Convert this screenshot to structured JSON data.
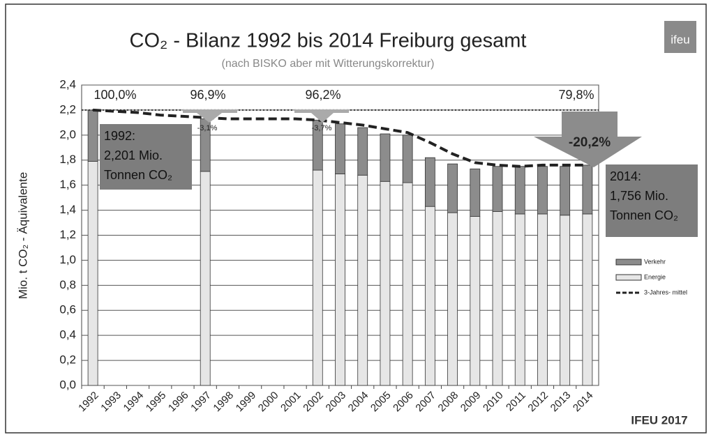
{
  "chart_data": {
    "type": "bar",
    "title": "CO₂ - Bilanz 1992 bis 2014 Freiburg gesamt",
    "subtitle": "(nach BISKO aber mit Witterungskorrektur)",
    "y_label": "Mio. t CO₂ - Äquivalente",
    "logo": "ifeu",
    "source": "IFEU 2017",
    "categories": [
      "1992",
      "1993",
      "1994",
      "1995",
      "1996",
      "1997",
      "1998",
      "1999",
      "2000",
      "2001",
      "2002",
      "2003",
      "2004",
      "2005",
      "2006",
      "2007",
      "2008",
      "2009",
      "2010",
      "2011",
      "2012",
      "2013",
      "2014"
    ],
    "series": [
      {
        "name": "Energie",
        "color": "#e6e6e6",
        "values": [
          1.79,
          null,
          null,
          null,
          null,
          1.71,
          null,
          null,
          null,
          null,
          1.72,
          1.69,
          1.68,
          1.63,
          1.62,
          1.43,
          1.38,
          1.35,
          1.39,
          1.37,
          1.37,
          1.36,
          1.37
        ]
      },
      {
        "name": "Verkehr",
        "color": "#8c8c8c",
        "values": [
          0.41,
          null,
          null,
          null,
          null,
          0.42,
          null,
          null,
          null,
          null,
          0.4,
          0.4,
          0.38,
          0.38,
          0.38,
          0.39,
          0.39,
          0.38,
          0.36,
          0.38,
          0.38,
          0.39,
          0.39
        ]
      },
      {
        "name": "3-Jahres- mittel",
        "type": "line",
        "color": "#222",
        "values": [
          2.2,
          2.19,
          2.18,
          2.16,
          2.15,
          2.14,
          2.13,
          2.13,
          2.13,
          2.13,
          2.12,
          2.1,
          2.08,
          2.05,
          2.02,
          1.94,
          1.85,
          1.78,
          1.76,
          1.75,
          1.76,
          1.76,
          1.76
        ]
      }
    ],
    "ylim": [
      0,
      2.4
    ],
    "yticks": [
      {
        "value": 0,
        "label": "0,0"
      },
      {
        "value": 0.2,
        "label": "0,2"
      },
      {
        "value": 0.4,
        "label": "0,4"
      },
      {
        "value": 0.6,
        "label": "0,6"
      },
      {
        "value": 0.8,
        "label": "0,8"
      },
      {
        "value": 1,
        "label": "1,0"
      },
      {
        "value": 1.2,
        "label": "1,2"
      },
      {
        "value": 1.4,
        "label": "1,4"
      },
      {
        "value": 1.6,
        "label": "1,6"
      },
      {
        "value": 1.8,
        "label": "1,8"
      },
      {
        "value": 2,
        "label": "2,0"
      },
      {
        "value": 2.2,
        "label": "2,2"
      },
      {
        "value": 2.4,
        "label": "2,4"
      }
    ],
    "grid": true,
    "annotations": [
      "100,0%",
      "96,9%",
      "96,2%",
      "79,8%",
      "-3,1%",
      "-3,7%",
      "-20,2%"
    ],
    "boxes": [
      {
        "lines": [
          "1992:",
          "2,201 Mio.",
          "Tonnen CO₂"
        ]
      },
      {
        "lines": [
          "2014:",
          "1,756 Mio.",
          "Tonnen CO₂"
        ]
      }
    ]
  }
}
